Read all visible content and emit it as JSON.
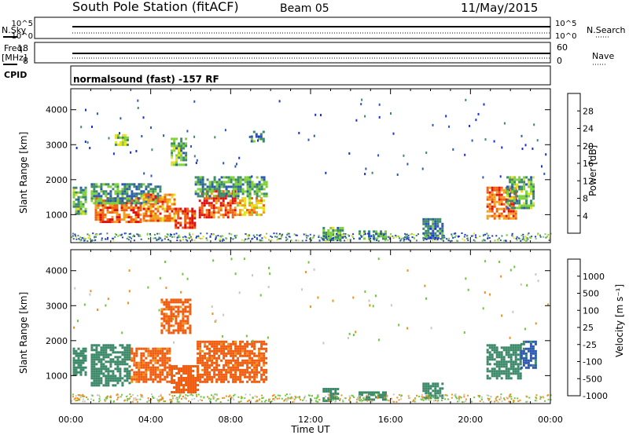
{
  "header": {
    "station": "South Pole Station (fitACF)",
    "beam": "Beam 05",
    "date": "11/May/2015"
  },
  "panels": {
    "nsky_label": "N.Sky",
    "nsearch_label": "N.Search",
    "freq_label_1": "Freq.",
    "freq_label_2": "[MHz]",
    "nave_label": "Nave",
    "cpid_label": "CPID",
    "cpid_text": "normalsound (fast) -157 RF",
    "noise_ticks_left": [
      "10^5",
      "10^0"
    ],
    "noise_ticks_right": [
      "10^5",
      "10^0"
    ],
    "freq_ticks": [
      "18",
      "8"
    ],
    "nave_ticks": [
      "60",
      "0"
    ]
  },
  "x_axis": {
    "label": "Time UT",
    "ticks": [
      "00:00",
      "04:00",
      "08:00",
      "12:00",
      "16:00",
      "20:00",
      "00:00"
    ]
  },
  "colors": {
    "power": [
      "#1a2ee0",
      "#2b57b5",
      "#3d8a6a",
      "#7fd13a",
      "#e8e020",
      "#f2a020",
      "#f06010",
      "#e01010"
    ],
    "velocity": [
      "#e81818",
      "#f05c10",
      "#f2901a",
      "#c8c8c0",
      "#6cc83a",
      "#3d8a6a",
      "#2d5ab0",
      "#1a2ed0"
    ]
  },
  "chart_data": [
    {
      "type": "heatmap",
      "title": "",
      "ylabel": "Slant Range [km]",
      "xlabel": "",
      "yticks": [
        1000,
        2000,
        3000,
        4000
      ],
      "ylim": [
        200,
        4600
      ],
      "xlim_hours": [
        0,
        24
      ],
      "colorbar": {
        "label": "Power [dB]",
        "ticks": [
          "28",
          "24",
          "20",
          "16",
          "12",
          "8",
          "4"
        ],
        "range": [
          0,
          32
        ]
      },
      "regions": [
        {
          "t0": 0.1,
          "t1": 0.7,
          "r0": 1000,
          "r1": 1800,
          "level": 12
        },
        {
          "t0": 1.2,
          "t1": 3.5,
          "r0": 800,
          "r1": 1500,
          "level": 26
        },
        {
          "t0": 1.0,
          "t1": 4.5,
          "r0": 1300,
          "r1": 1900,
          "level": 10
        },
        {
          "t0": 3.6,
          "t1": 5.2,
          "r0": 850,
          "r1": 1600,
          "level": 24
        },
        {
          "t0": 5.2,
          "t1": 6.2,
          "r0": 600,
          "r1": 1200,
          "level": 28
        },
        {
          "t0": 6.4,
          "t1": 8.2,
          "r0": 900,
          "r1": 1700,
          "level": 27
        },
        {
          "t0": 6.2,
          "t1": 9.8,
          "r0": 1500,
          "r1": 2100,
          "level": 11
        },
        {
          "t0": 8.3,
          "t1": 9.6,
          "r0": 1000,
          "r1": 1500,
          "level": 20
        },
        {
          "t0": 2.2,
          "t1": 2.8,
          "r0": 3000,
          "r1": 3300,
          "level": 14
        },
        {
          "t0": 5.0,
          "t1": 5.8,
          "r0": 2400,
          "r1": 3200,
          "level": 12
        },
        {
          "t0": 9.0,
          "t1": 9.6,
          "r0": 3100,
          "r1": 3400,
          "level": 8
        },
        {
          "t0": 12.6,
          "t1": 13.6,
          "r0": 250,
          "r1": 650,
          "level": 12
        },
        {
          "t0": 14.4,
          "t1": 15.8,
          "r0": 300,
          "r1": 550,
          "level": 11
        },
        {
          "t0": 17.6,
          "t1": 18.6,
          "r0": 350,
          "r1": 900,
          "level": 8
        },
        {
          "t0": 20.8,
          "t1": 22.3,
          "r0": 900,
          "r1": 1800,
          "level": 25
        },
        {
          "t0": 21.8,
          "t1": 23.2,
          "r0": 1200,
          "r1": 2100,
          "level": 12
        }
      ]
    },
    {
      "type": "heatmap",
      "title": "",
      "ylabel": "Slant Range [km]",
      "xlabel": "Time UT",
      "yticks": [
        1000,
        2000,
        3000,
        4000
      ],
      "ylim": [
        200,
        4600
      ],
      "xlim_hours": [
        0,
        24
      ],
      "colorbar": {
        "label": "Velocity [m s⁻¹]",
        "ticks": [
          "1000",
          "500",
          "100",
          "25",
          "-25",
          "-100",
          "-500",
          "-1000"
        ],
        "range": [
          -1000,
          1000
        ]
      },
      "regions": [
        {
          "t0": 0.1,
          "t1": 0.7,
          "r0": 1000,
          "r1": 1800,
          "level": 300
        },
        {
          "t0": 1.0,
          "t1": 3.0,
          "r0": 700,
          "r1": 1900,
          "level": 200
        },
        {
          "t0": 3.0,
          "t1": 5.0,
          "r0": 800,
          "r1": 1800,
          "level": -150
        },
        {
          "t0": 5.0,
          "t1": 6.3,
          "r0": 500,
          "r1": 1300,
          "level": -200
        },
        {
          "t0": 6.3,
          "t1": 9.8,
          "r0": 800,
          "r1": 2000,
          "level": -150
        },
        {
          "t0": 4.5,
          "t1": 6.0,
          "r0": 2200,
          "r1": 3200,
          "level": -150
        },
        {
          "t0": 12.6,
          "t1": 13.4,
          "r0": 250,
          "r1": 650,
          "level": 300
        },
        {
          "t0": 14.4,
          "t1": 15.8,
          "r0": 300,
          "r1": 550,
          "level": 300
        },
        {
          "t0": 17.6,
          "t1": 18.6,
          "r0": 350,
          "r1": 800,
          "level": 300
        },
        {
          "t0": 20.8,
          "t1": 22.5,
          "r0": 900,
          "r1": 1900,
          "level": 300
        },
        {
          "t0": 22.5,
          "t1": 23.3,
          "r0": 1200,
          "r1": 2000,
          "level": 700
        }
      ]
    }
  ]
}
